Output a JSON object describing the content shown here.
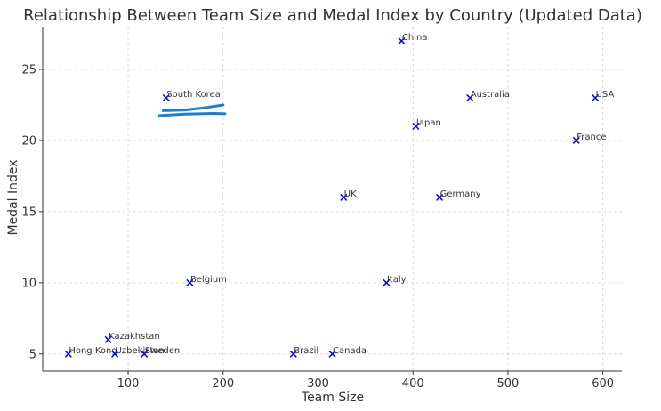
{
  "chart_data": {
    "type": "scatter",
    "title": "Relationship Between Team Size and Medal Index by Country (Updated Data)",
    "xlabel": "Team Size",
    "ylabel": "Medal Index",
    "xlim": [
      10,
      620
    ],
    "ylim": [
      3.8,
      28.0
    ],
    "xticks": [
      100,
      200,
      300,
      400,
      500,
      600
    ],
    "yticks": [
      5,
      10,
      15,
      20,
      25
    ],
    "grid": true,
    "marker": "x",
    "marker_color": "#1010cc",
    "points": [
      {
        "label": "China",
        "x": 388,
        "y": 27
      },
      {
        "label": "South Korea",
        "x": 140,
        "y": 23
      },
      {
        "label": "Australia",
        "x": 460,
        "y": 23
      },
      {
        "label": "USA",
        "x": 592,
        "y": 23
      },
      {
        "label": "Japan",
        "x": 403,
        "y": 21
      },
      {
        "label": "France",
        "x": 572,
        "y": 20
      },
      {
        "label": "UK",
        "x": 327,
        "y": 16
      },
      {
        "label": "Germany",
        "x": 428,
        "y": 16
      },
      {
        "label": "Belgium",
        "x": 165,
        "y": 10
      },
      {
        "label": "Italy",
        "x": 372,
        "y": 10
      },
      {
        "label": "Kazakhstan",
        "x": 79,
        "y": 6
      },
      {
        "label": "Hong Kong",
        "x": 37,
        "y": 5
      },
      {
        "label": "Uzbekistan",
        "x": 86,
        "y": 5
      },
      {
        "label": "Sweden",
        "x": 117,
        "y": 5
      },
      {
        "label": "Brazil",
        "x": 274,
        "y": 5
      },
      {
        "label": "Canada",
        "x": 315,
        "y": 5
      }
    ],
    "annotation_strokes": {
      "color": "#1a7fd4",
      "strokes": [
        [
          [
            137,
            22.1
          ],
          [
            160,
            22.15
          ],
          [
            180,
            22.3
          ],
          [
            200,
            22.5
          ]
        ],
        [
          [
            133,
            21.75
          ],
          [
            160,
            21.85
          ],
          [
            190,
            21.9
          ],
          [
            202,
            21.88
          ]
        ]
      ]
    }
  }
}
